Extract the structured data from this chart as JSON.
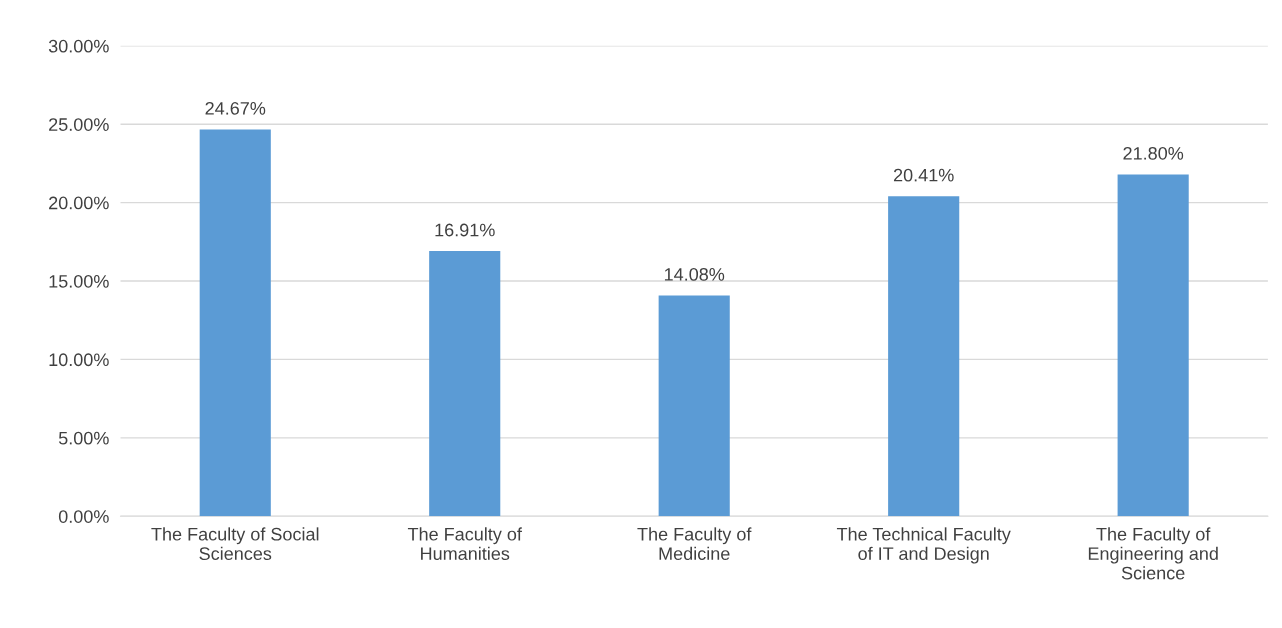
{
  "chart_data": {
    "type": "bar",
    "categories": [
      "The Faculty of Social\nSciences",
      "The Faculty of\nHumanities",
      "The Faculty of\nMedicine",
      "The Technical Faculty\nof IT and Design",
      "The Faculty of\nEngineering and\nScience"
    ],
    "values": [
      24.67,
      16.91,
      14.08,
      20.41,
      21.8
    ],
    "value_labels": [
      "24.67%",
      "16.91%",
      "14.08%",
      "20.41%",
      "21.80%"
    ],
    "color": "#5b9bd5",
    "ylim": [
      0,
      30
    ],
    "yticks": [
      {
        "value": 0,
        "label": "0.00%"
      },
      {
        "value": 5,
        "label": "5.00%"
      },
      {
        "value": 10,
        "label": "10.00%"
      },
      {
        "value": 15,
        "label": "15.00%"
      },
      {
        "value": 20,
        "label": "20.00%"
      },
      {
        "value": 25,
        "label": "25.00%"
      },
      {
        "value": 30,
        "label": "30.00%"
      }
    ],
    "grid": "y",
    "legend": false
  }
}
